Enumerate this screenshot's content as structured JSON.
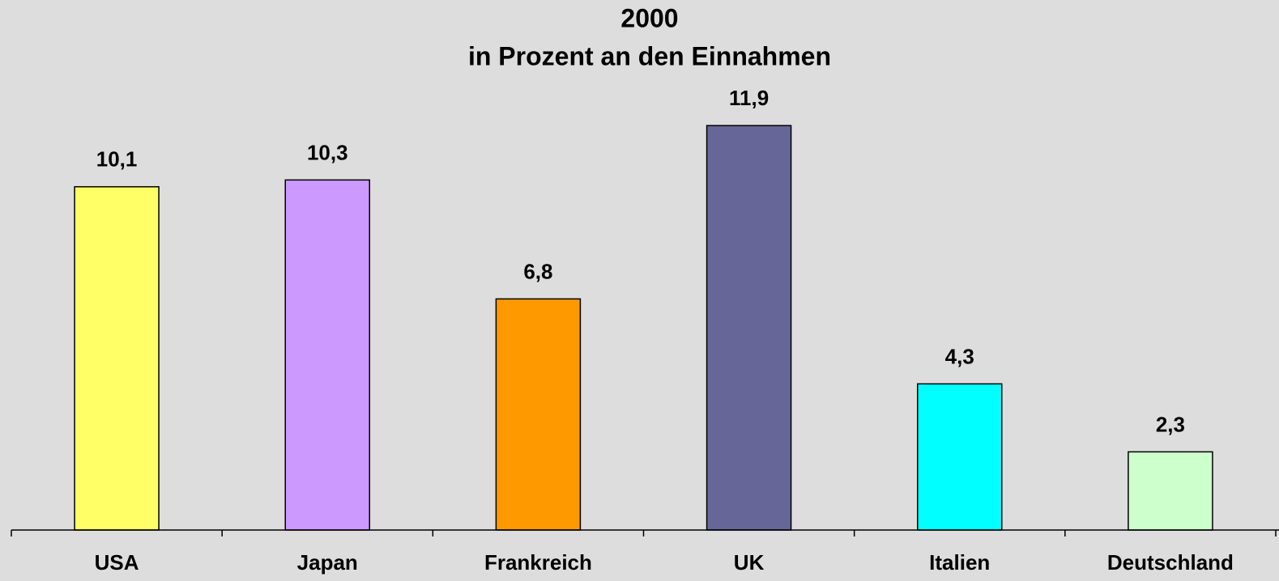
{
  "chart_data": {
    "type": "bar",
    "title": "2000",
    "subtitle": "in Prozent an den Einnahmen",
    "categories": [
      "USA",
      "Japan",
      "Frankreich",
      "UK",
      "Italien",
      "Deutschland"
    ],
    "values": [
      10.1,
      10.3,
      6.8,
      11.9,
      4.3,
      2.3
    ],
    "value_labels": [
      "10,1",
      "10,3",
      "6,8",
      "11,9",
      "4,3",
      "2,3"
    ],
    "colors": [
      "#ffff66",
      "#cc99ff",
      "#ff9900",
      "#666699",
      "#00ffff",
      "#ccffcc"
    ],
    "ylim": [
      0,
      15
    ]
  }
}
